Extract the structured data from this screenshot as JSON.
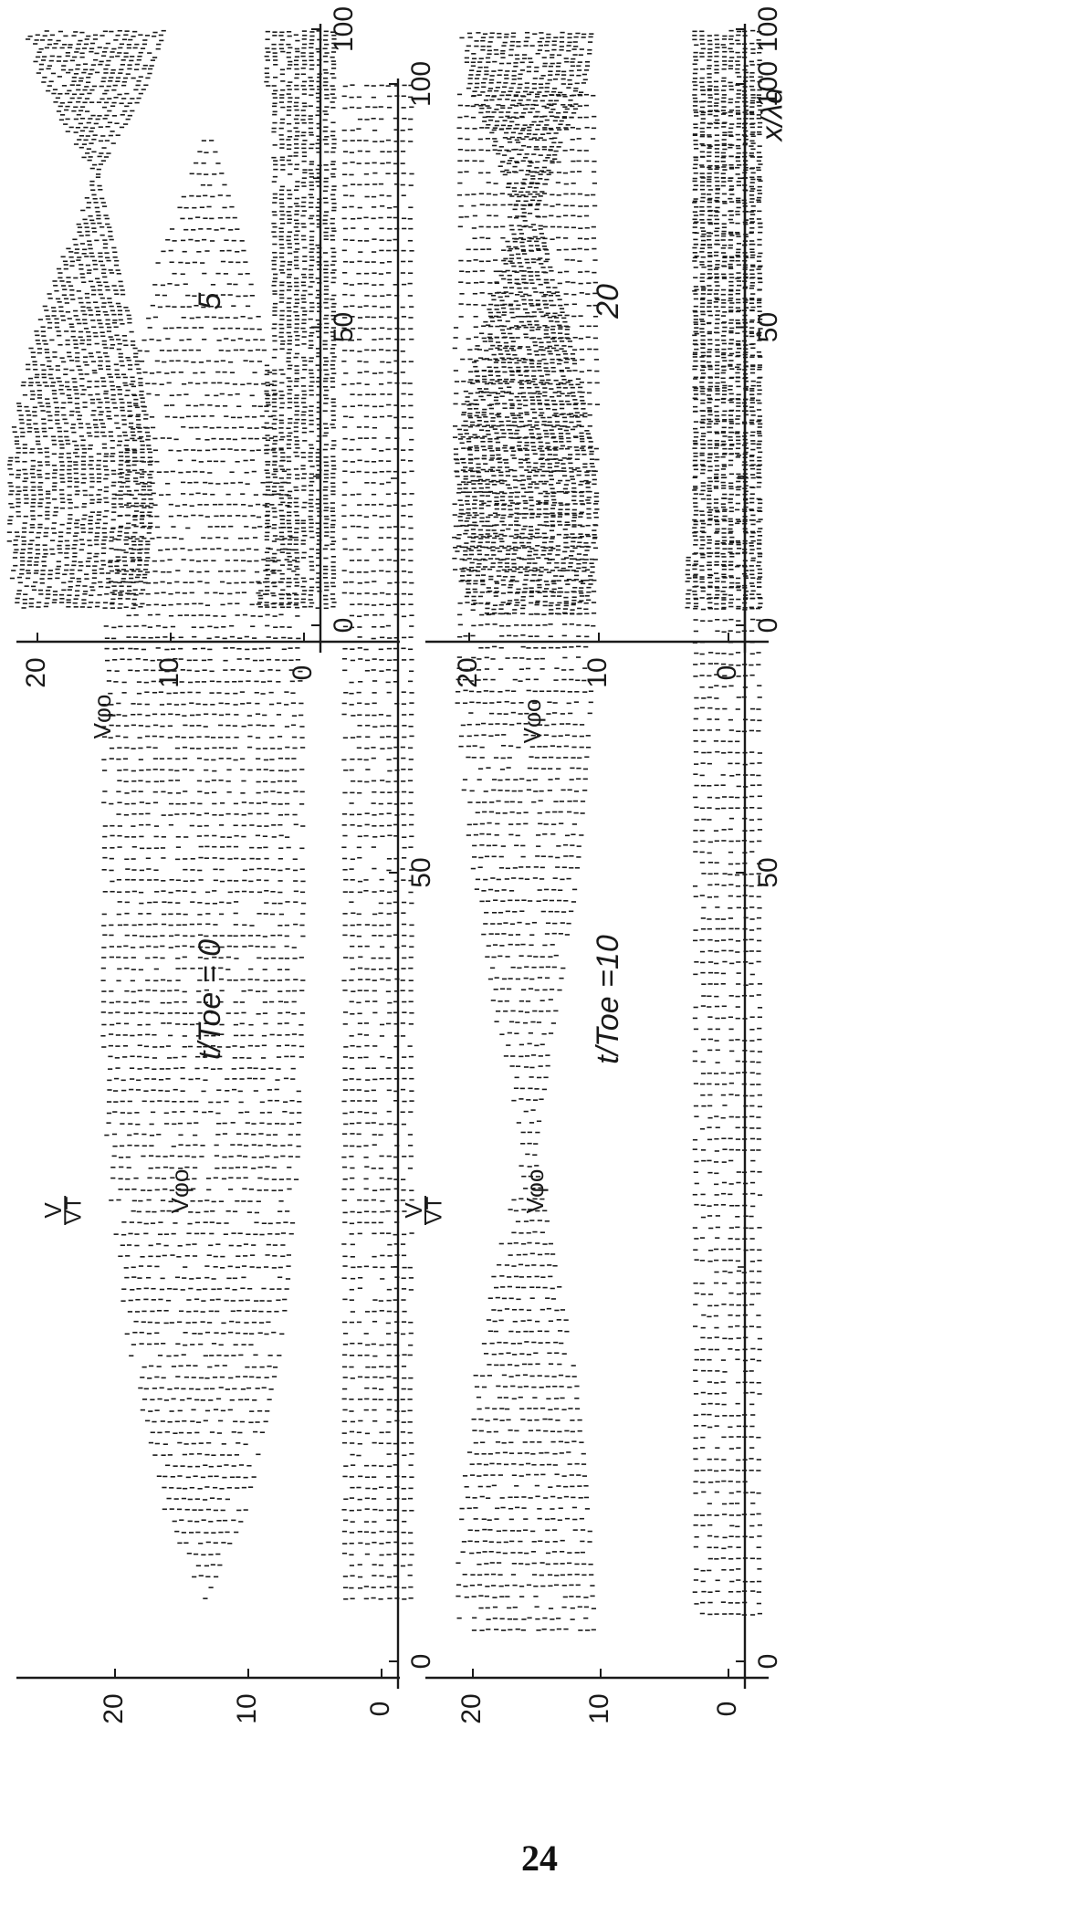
{
  "page_number": "24",
  "colors": {
    "ink": "#1a1a1a",
    "background": "#ffffff"
  },
  "chart_data": [
    {
      "type": "scatter",
      "panel": "top-left",
      "title": "t/Toe = 0",
      "ylabel_fraction_num": "V",
      "ylabel_fraction_den": "VT",
      "y_marker_label": "Vφo",
      "xlabel": "",
      "xlim": [
        0,
        100
      ],
      "ylim": [
        -4,
        24
      ],
      "x_ticks": [
        0,
        50,
        100
      ],
      "x_tick_labels": [
        "0",
        "50",
        "100"
      ],
      "y_ticks": [
        0,
        10,
        20
      ],
      "y_tick_labels": [
        "0",
        "10",
        "20"
      ],
      "series": [
        {
          "region": "beam",
          "x": [
            4,
            10,
            20,
            30,
            40,
            50,
            60,
            70,
            80,
            90,
            97
          ],
          "y_lower": [
            13.2,
            10.0,
            7.6,
            6.4,
            6.0,
            5.9,
            6.0,
            6.6,
            8.0,
            10.5,
            13.0
          ],
          "y_upper": [
            13.4,
            16.6,
            19.0,
            20.4,
            21.0,
            21.2,
            21.0,
            20.4,
            19.0,
            16.5,
            13.6
          ]
        },
        {
          "region": "background",
          "x": [
            4,
            20,
            40,
            60,
            80,
            100
          ],
          "y_lower": [
            -2.2,
            -2.2,
            -2.2,
            -2.2,
            -2.2,
            -2.2
          ],
          "y_upper": [
            2.8,
            2.8,
            2.8,
            2.8,
            2.8,
            2.8
          ]
        }
      ]
    },
    {
      "type": "scatter",
      "panel": "top-right",
      "title": "5",
      "y_marker_label": "Vφo",
      "xlabel": "",
      "xlim": [
        0,
        100
      ],
      "ylim": [
        -4,
        24
      ],
      "x_ticks": [
        0,
        50,
        100
      ],
      "x_tick_labels": [
        "0",
        "50",
        "100"
      ],
      "y_ticks": [
        0,
        10,
        20
      ],
      "y_tick_labels": [
        "0",
        "10",
        "20"
      ],
      "series": [
        {
          "region": "beam",
          "x": [
            3,
            10,
            20,
            30,
            40,
            50,
            60,
            70,
            76,
            82,
            90,
            100
          ],
          "y_lower": [
            12.2,
            11.8,
            11.5,
            11.6,
            12.2,
            13.0,
            14.0,
            15.0,
            15.5,
            14.0,
            12.0,
            10.5
          ],
          "y_upper": [
            21.5,
            22.0,
            22.3,
            22.0,
            21.2,
            20.0,
            18.4,
            16.6,
            15.8,
            17.5,
            19.5,
            21.0
          ]
        },
        {
          "region": "background",
          "x": [
            3,
            20,
            40,
            60,
            80,
            100
          ],
          "y_lower": [
            -2.2,
            -2.2,
            -2.2,
            -2.2,
            -2.2,
            -2.2
          ],
          "y_upper": [
            3.4,
            3.0,
            2.8,
            2.6,
            2.7,
            2.8
          ]
        }
      ]
    },
    {
      "type": "scatter",
      "panel": "bottom-left",
      "title": "t/Toe =10",
      "ylabel_fraction_num": "V",
      "ylabel_fraction_den": "VT",
      "y_marker_label": "Vφo",
      "xlabel": "",
      "xlim": [
        0,
        100
      ],
      "ylim": [
        -4,
        24
      ],
      "x_ticks": [
        0,
        50,
        100
      ],
      "x_tick_labels": [
        "0",
        "50",
        "100"
      ],
      "y_ticks": [
        0,
        10,
        20
      ],
      "y_tick_labels": [
        "0",
        "10",
        "20"
      ],
      "series": [
        {
          "region": "beam",
          "x": [
            2,
            10,
            18,
            25,
            32,
            40,
            50,
            60,
            70,
            80,
            90,
            100
          ],
          "y_lower": [
            10.5,
            11.0,
            12.0,
            13.5,
            15.2,
            13.8,
            11.8,
            10.8,
            10.4,
            10.3,
            10.5,
            10.6
          ],
          "y_upper": [
            21.5,
            21.0,
            19.8,
            18.2,
            16.2,
            18.0,
            20.2,
            21.2,
            21.5,
            21.5,
            21.3,
            21.2
          ]
        },
        {
          "region": "background",
          "x": [
            3,
            20,
            40,
            60,
            80,
            100
          ],
          "y_lower": [
            -2.4,
            -2.4,
            -2.4,
            -2.4,
            -2.4,
            -2.4
          ],
          "y_upper": [
            3.0,
            3.0,
            3.0,
            3.0,
            3.0,
            3.0
          ]
        }
      ]
    },
    {
      "type": "scatter",
      "panel": "bottom-right",
      "title": "20",
      "y_marker_label": "Vφo",
      "xlabel": "x/λd",
      "xlim": [
        0,
        100
      ],
      "ylim": [
        -4,
        24
      ],
      "x_ticks": [
        0,
        50,
        100
      ],
      "x_tick_labels": [
        "0",
        "50",
        "100"
      ],
      "y_ticks": [
        0,
        10,
        20
      ],
      "y_tick_labels": [
        "0",
        "10",
        "20"
      ],
      "series": [
        {
          "region": "beam",
          "x": [
            2,
            10,
            20,
            30,
            40,
            50,
            60,
            70,
            80,
            90,
            100
          ],
          "y_lower": [
            11.0,
            10.5,
            10.2,
            10.6,
            11.5,
            12.5,
            13.8,
            14.8,
            13.2,
            11.2,
            10.5
          ],
          "y_upper": [
            20.0,
            20.8,
            21.2,
            21.0,
            20.2,
            19.0,
            17.5,
            16.5,
            18.2,
            20.0,
            20.6
          ]
        },
        {
          "region": "background",
          "x": [
            3,
            20,
            40,
            60,
            80,
            100
          ],
          "y_lower": [
            -2.4,
            -2.4,
            -2.4,
            -2.4,
            -2.4,
            -2.4
          ],
          "y_upper": [
            3.2,
            3.0,
            2.9,
            2.9,
            3.0,
            3.0
          ]
        }
      ]
    }
  ]
}
